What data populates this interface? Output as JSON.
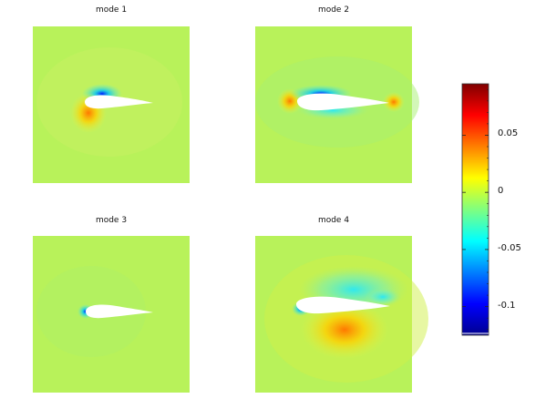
{
  "chart_data": [
    {
      "type": "heatmap",
      "title": "mode 1",
      "hotspots": [
        {
          "kind": "blue"
        },
        {
          "kind": "orange"
        }
      ]
    },
    {
      "type": "heatmap",
      "title": "mode 2",
      "hotspots": [
        {
          "kind": "orange"
        },
        {
          "kind": "blue"
        },
        {
          "kind": "cyan"
        },
        {
          "kind": "orange"
        }
      ]
    },
    {
      "type": "heatmap",
      "title": "mode 3",
      "hotspots": [
        {
          "kind": "blue"
        }
      ]
    },
    {
      "type": "heatmap",
      "title": "mode 4",
      "hotspots": [
        {
          "kind": "cyan"
        },
        {
          "kind": "blue"
        },
        {
          "kind": "orange"
        },
        {
          "kind": "cyan"
        }
      ]
    }
  ],
  "colorbar": {
    "colormap": "jet",
    "range": [
      -0.125,
      0.095
    ],
    "ticks": [
      {
        "value": 0.05,
        "label": "0.05"
      },
      {
        "value": 0,
        "label": "0"
      },
      {
        "value": -0.05,
        "label": "-0.05"
      },
      {
        "value": -0.1,
        "label": "-0.1"
      }
    ]
  },
  "colors": {
    "background_field": "#b8f25a",
    "airfoil": "#ffffff"
  }
}
